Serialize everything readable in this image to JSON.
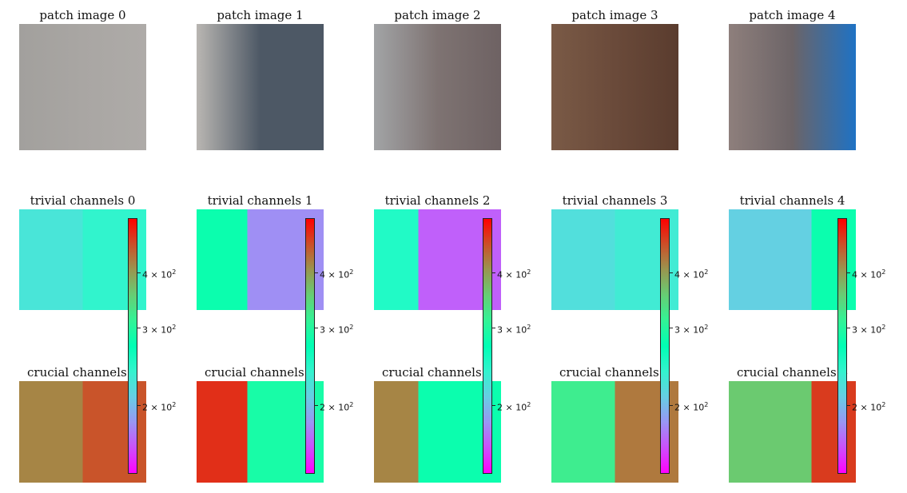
{
  "chart_data": {
    "type": "heatmap",
    "colormap": "rainbow",
    "colorbar": {
      "scale": "log",
      "range": [
        140,
        530
      ],
      "ticks": [
        {
          "value": 400,
          "base": "4",
          "exp": "2"
        },
        {
          "value": 300,
          "base": "3",
          "exp": "2"
        },
        {
          "value": 200,
          "base": "2",
          "exp": "2"
        }
      ],
      "tick_label_sep": " × 10"
    },
    "columns": [
      {
        "patch_title": "patch image 0",
        "trivial_title": "trivial channels 0",
        "crucial_title": "crucial channels 0",
        "patch_colors": {
          "base": "#a9a6a3",
          "left": "#a2a09d",
          "right": "#aeaba8"
        },
        "trivial_levels": {
          "left": 225,
          "right": 240,
          "split": 0.5
        },
        "crucial_levels": {
          "left": 420,
          "right": 460,
          "split": 0.5
        }
      },
      {
        "patch_title": "patch image 1",
        "trivial_title": "trivial channels 1",
        "crucial_title": "crucial channels 1",
        "patch_colors": {
          "base": "#4d5865",
          "left": "#b9b6b2",
          "right": "#4d5865"
        },
        "trivial_levels": {
          "left": 280,
          "right": 180,
          "split": 0.4
        },
        "crucial_levels": {
          "left": 490,
          "right": 290,
          "split": 0.4
        }
      },
      {
        "patch_title": "patch image 2",
        "trivial_title": "trivial channels 2",
        "crucial_title": "crucial channels 2",
        "patch_colors": {
          "base": "#7e7372",
          "left": "#a2a4a6",
          "right": "#6e6263"
        },
        "trivial_levels": {
          "left": 250,
          "right": 165,
          "split": 0.35
        },
        "crucial_levels": {
          "left": 420,
          "right": 280,
          "split": 0.35
        }
      },
      {
        "patch_title": "patch image 3",
        "trivial_title": "trivial channels 3",
        "crucial_title": "crucial channels 3",
        "patch_colors": {
          "base": "#6a4a3a",
          "left": "#7a5a46",
          "right": "#5a3c2e"
        },
        "trivial_levels": {
          "left": 220,
          "right": 230,
          "split": 0.5
        },
        "crucial_levels": {
          "left": 320,
          "right": 430,
          "split": 0.5
        }
      },
      {
        "patch_title": "patch image 4",
        "trivial_title": "trivial channels 4",
        "crucial_title": "crucial channels 4",
        "patch_colors": {
          "base": "#6c6467",
          "left": "#8e7f7c",
          "right": "#1f72c4"
        },
        "trivial_levels": {
          "left": 210,
          "right": 280,
          "split": 0.65
        },
        "crucial_levels": {
          "left": 360,
          "right": 480,
          "split": 0.65
        }
      }
    ]
  }
}
